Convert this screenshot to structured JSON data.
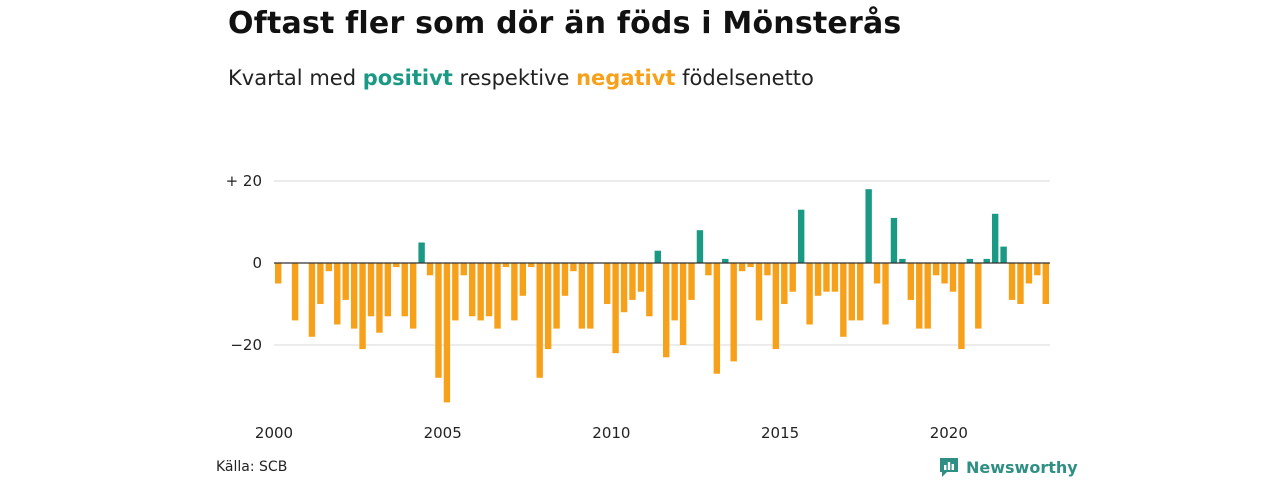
{
  "title": "Oftast fler som dör än föds i Mönsterås",
  "subtitle": {
    "prefix": "Kvartal med",
    "positive_word": "positivt",
    "middle": "respektive",
    "negative_word": "negativt",
    "suffix": "födelsenetto"
  },
  "colors": {
    "positive": "#1a9985",
    "negative": "#f7a11a",
    "grid": "#d9d9d9",
    "zero_line": "#333333"
  },
  "source": "Källa: SCB",
  "brand": {
    "name": "Newsworthy",
    "icon": "newsworthy-chart-bubble-icon"
  },
  "chart_data": {
    "type": "bar",
    "x_unit": "quarter",
    "x_start": "2000 Q1",
    "x_ticks": [
      2000,
      2005,
      2010,
      2015,
      2020
    ],
    "x_tick_labels": [
      "2000",
      "2005",
      "2010",
      "2015",
      "2020"
    ],
    "y_ticks": [
      20,
      0,
      -20
    ],
    "y_tick_labels": [
      "+ 20",
      "0",
      "−20"
    ],
    "ylim": [
      -35,
      20
    ],
    "grid": true,
    "series": [
      {
        "values": [
          -5,
          0,
          -14,
          0,
          -18,
          -10,
          -2,
          -15,
          -9,
          -16,
          -21,
          -13,
          -17,
          -13,
          -1,
          -13,
          -16,
          5,
          -3,
          -28,
          -34,
          -14,
          -3,
          -13,
          -14,
          -13,
          -16,
          -1,
          -14,
          -8,
          -1,
          -28,
          -21,
          -16,
          -8,
          -2,
          -16,
          -16,
          0,
          -10,
          -22,
          -12,
          -9,
          -7,
          -13,
          3,
          -23,
          -14,
          -20,
          -9,
          8,
          -3,
          -27,
          1,
          -24,
          -2,
          -1,
          -14,
          -3,
          -21,
          -10,
          -7,
          13,
          -15,
          -8,
          -7,
          -7,
          -18,
          -14,
          -14,
          18,
          -5,
          -15,
          11,
          1,
          -9,
          -16,
          -16,
          -3,
          -5,
          -7,
          -21,
          1,
          -16,
          1,
          12,
          4,
          -9,
          -10,
          -5,
          -3,
          -10
        ]
      }
    ]
  }
}
